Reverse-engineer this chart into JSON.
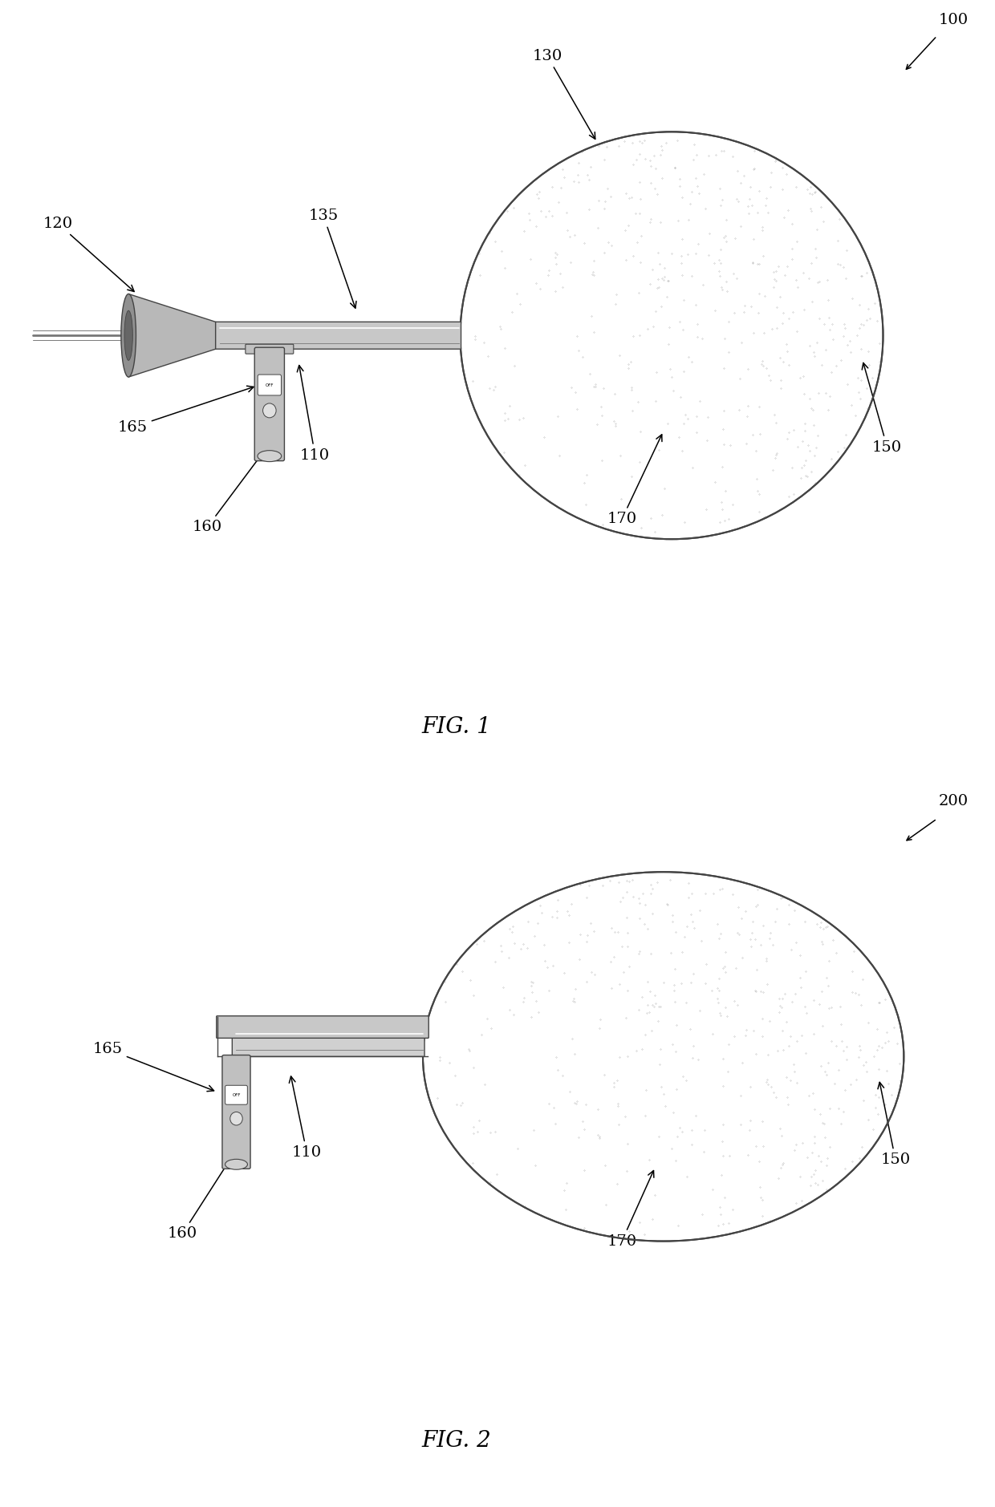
{
  "fig_width": 12.4,
  "fig_height": 18.79,
  "background_color": "#ffffff",
  "dark_gray": "#444444",
  "medium_gray": "#777777",
  "light_gray": "#aaaaaa",
  "fig1_label": "FIG. 1",
  "fig2_label": "FIG. 2",
  "label_fontsize": 14,
  "caption_fontsize": 20
}
